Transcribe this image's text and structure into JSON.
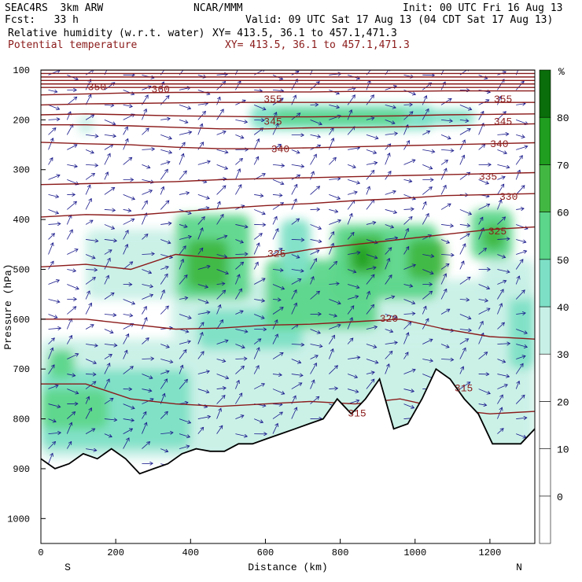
{
  "header": {
    "model": "SEAC4RS  3km ARW",
    "org": "NCAR/MMM",
    "init": "Init: 00 UTC Fri 16 Aug 13",
    "fcst": "Fcst:   33 h",
    "valid": "Valid: 09 UTC Sat 17 Aug 13 (04 CDT Sat 17 Aug 13)",
    "field1": "Relative humidity (w.r.t. water)",
    "xy1": "XY= 413.5, 36.1 to 457.1,471.3",
    "field2": "Potential temperature",
    "xy2": "XY= 413.5, 36.1 to 457.1,471.3"
  },
  "colors": {
    "theta": "#8b1a1a",
    "wind": "#1a1a8c",
    "rh": [
      "#ffffff",
      "#ffffff",
      "#ffffff",
      "#ffffff",
      "#c8f0e6",
      "#7de0c6",
      "#5cd68a",
      "#42b842",
      "#1f9e1f",
      "#0a6e0a"
    ]
  },
  "chart_data": {
    "type": "heatmap",
    "xlabel": "Distance (km)",
    "ylabel": "Pressure (hPa)",
    "xlim": [
      0,
      1320
    ],
    "ylim": [
      1050,
      100
    ],
    "x_ticks": [
      "0",
      "200",
      "400",
      "600",
      "800",
      "1000",
      "1200"
    ],
    "y_ticks": [
      "100",
      "200",
      "300",
      "400",
      "500",
      "600",
      "700",
      "800",
      "900",
      "1000"
    ],
    "x_end_labels": {
      "left": "S",
      "right": "N"
    },
    "colorbar": {
      "unit": "%",
      "levels": [
        -10,
        0,
        10,
        20,
        30,
        40,
        50,
        60,
        70,
        80,
        90
      ],
      "tick_labels": [
        "0",
        "10",
        "20",
        "30",
        "40",
        "50",
        "60",
        "70",
        "80"
      ]
    },
    "theta_labels": [
      {
        "text": "350",
        "x": 150,
        "p": 140
      },
      {
        "text": "360",
        "x": 320,
        "p": 145
      },
      {
        "text": "355",
        "x": 620,
        "p": 165
      },
      {
        "text": "355",
        "x": 1235,
        "p": 165
      },
      {
        "text": "345",
        "x": 620,
        "p": 210
      },
      {
        "text": "345",
        "x": 1235,
        "p": 210
      },
      {
        "text": "340",
        "x": 640,
        "p": 265
      },
      {
        "text": "340",
        "x": 1225,
        "p": 255
      },
      {
        "text": "335",
        "x": 1195,
        "p": 320
      },
      {
        "text": "330",
        "x": 1250,
        "p": 360
      },
      {
        "text": "325",
        "x": 630,
        "p": 475
      },
      {
        "text": "325",
        "x": 1220,
        "p": 430
      },
      {
        "text": "320",
        "x": 930,
        "p": 605
      },
      {
        "text": "315",
        "x": 845,
        "p": 795
      },
      {
        "text": "315",
        "x": 1130,
        "p": 745
      }
    ],
    "theta_lines": [
      {
        "theta": 315,
        "p": [
          730,
          730,
          760,
          770,
          775,
          770,
          765,
          770,
          760,
          780,
          790,
          785
        ]
      },
      {
        "theta": 320,
        "p": [
          600,
          600,
          610,
          620,
          618,
          612,
          610,
          605,
          600,
          620,
          635,
          640
        ]
      },
      {
        "theta": 325,
        "p": [
          495,
          490,
          500,
          470,
          478,
          475,
          460,
          450,
          440,
          430,
          420,
          415
        ]
      },
      {
        "theta": 330,
        "p": [
          395,
          390,
          392,
          385,
          378,
          372,
          368,
          362,
          358,
          352,
          350,
          348
        ]
      },
      {
        "theta": 335,
        "p": [
          330,
          328,
          326,
          324,
          320,
          318,
          316,
          314,
          312,
          310,
          308,
          306
        ]
      },
      {
        "theta": 340,
        "p": [
          245,
          248,
          250,
          255,
          258,
          258,
          256,
          254,
          252,
          250,
          248,
          246
        ]
      },
      {
        "theta": 345,
        "p": [
          210,
          210,
          212,
          215,
          218,
          218,
          216,
          215,
          214,
          212,
          210,
          208
        ]
      },
      {
        "theta": 350,
        "p": [
          190,
          188,
          190,
          192,
          193,
          194,
          194,
          193,
          192,
          190,
          189,
          188
        ]
      },
      {
        "theta": 355,
        "p": [
          170,
          168,
          167,
          166,
          165,
          165,
          165,
          165,
          165,
          165,
          165,
          165
        ]
      },
      {
        "theta": 360,
        "p": [
          150,
          148,
          146,
          145,
          145,
          144,
          144,
          143,
          143,
          142,
          142,
          142
        ]
      }
    ],
    "terrain_p": [
      880,
      900,
      890,
      870,
      880,
      860,
      880,
      910,
      900,
      890,
      870,
      860,
      865,
      865,
      850,
      850,
      840,
      830,
      820,
      810,
      800,
      760,
      790,
      760,
      720,
      820,
      810,
      760,
      700,
      720,
      760,
      790,
      850,
      850,
      850,
      820
    ]
  }
}
